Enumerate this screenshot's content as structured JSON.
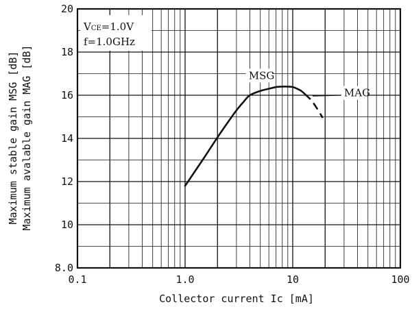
{
  "chart_data": {
    "type": "line",
    "xscale": "log",
    "xlim": [
      0.1,
      100
    ],
    "ylim": [
      8,
      20
    ],
    "xlabel": "Collector current Ic [mA]",
    "ylabel_lines": [
      "Maximum stable gain MSG [dB]",
      "Maximum avalable gain MAG [dB]"
    ],
    "x_ticks": [
      0.1,
      1,
      10,
      100
    ],
    "x_tick_labels": [
      "0.1",
      "1.0",
      "10",
      "100"
    ],
    "y_ticks": [
      8,
      10,
      12,
      14,
      16,
      18,
      20
    ],
    "y_tick_labels": [
      "8.0",
      "10",
      "12",
      "14",
      "16",
      "18",
      "20"
    ],
    "conditions": {
      "vce_prefix": "V",
      "vce_sub": "CE",
      "vce_value": "=1.0V",
      "freq": "f=1.0GHz"
    },
    "grid": true,
    "series": [
      {
        "name": "MSG",
        "style": "solid",
        "x": [
          1.0,
          1.5,
          2.0,
          2.5,
          3.0,
          3.5,
          4.0,
          5.0,
          6.0,
          7.0,
          8.0,
          9.0,
          10.0,
          11.0,
          12.0,
          13.0
        ],
        "y": [
          11.8,
          13.1,
          14.05,
          14.75,
          15.3,
          15.7,
          16.0,
          16.2,
          16.3,
          16.38,
          16.4,
          16.4,
          16.38,
          16.3,
          16.2,
          16.05
        ]
      },
      {
        "name": "MAG",
        "style": "dashed",
        "x": [
          13.0,
          14.0,
          15.0,
          16.0,
          17.0,
          18.0,
          19.0
        ],
        "y": [
          16.05,
          15.9,
          15.75,
          15.55,
          15.35,
          15.15,
          14.95
        ]
      }
    ]
  }
}
